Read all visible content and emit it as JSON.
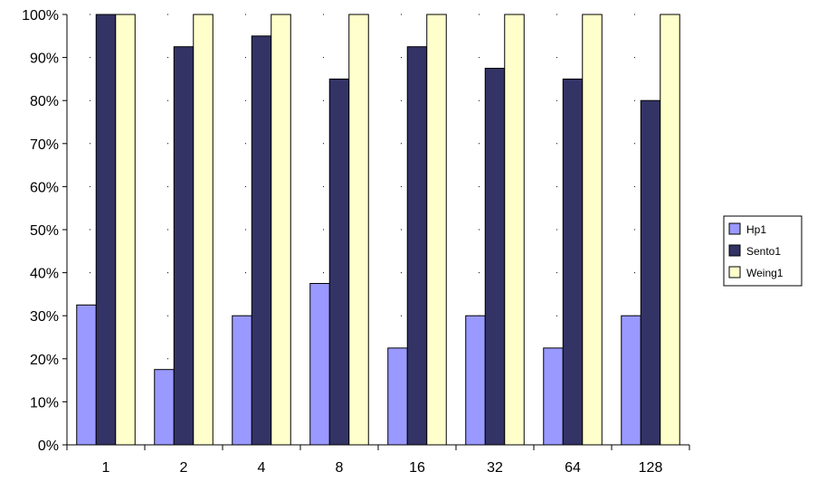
{
  "chart_data": {
    "type": "bar",
    "title": "",
    "xlabel": "",
    "ylabel": "",
    "categories": [
      "1",
      "2",
      "4",
      "8",
      "16",
      "32",
      "64",
      "128"
    ],
    "series": [
      {
        "name": "Hp1",
        "values": [
          32.5,
          17.5,
          30,
          37.5,
          22.5,
          30,
          22.5,
          30
        ],
        "color": "#9999FF"
      },
      {
        "name": "Sento1",
        "values": [
          100,
          92.5,
          95,
          85,
          92.5,
          87.5,
          85,
          80
        ],
        "color": "#333366"
      },
      {
        "name": "Weing1",
        "values": [
          100,
          100,
          100,
          100,
          100,
          100,
          100,
          100
        ],
        "color": "#FFFFCC"
      }
    ],
    "ylim": [
      0,
      100
    ],
    "yticks": [
      "0%",
      "10%",
      "20%",
      "30%",
      "40%",
      "50%",
      "60%",
      "70%",
      "80%",
      "90%",
      "100%"
    ],
    "grid": "horizontal dotted",
    "legend_position": "right"
  }
}
